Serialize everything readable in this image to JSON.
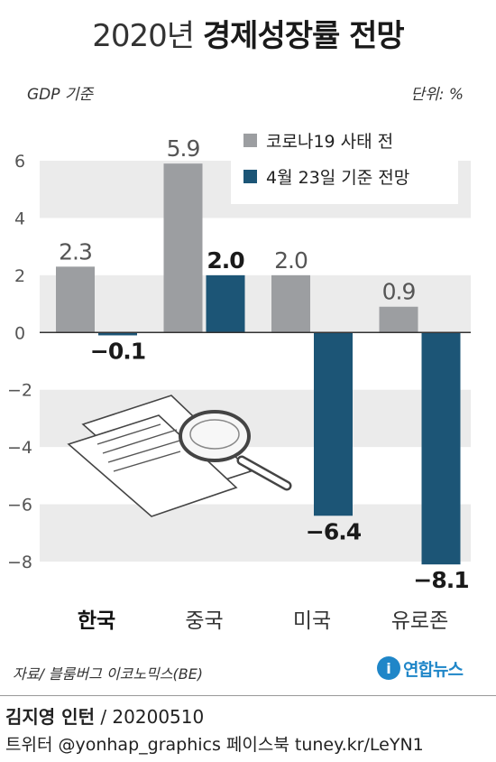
{
  "header": {
    "title_light": "2020년",
    "title_bold": "경제성장률 전망",
    "basis": "GDP 기준",
    "unit": "단위: %"
  },
  "chart_data": {
    "type": "bar",
    "categories": [
      "한국",
      "중국",
      "미국",
      "유로존"
    ],
    "series": [
      {
        "name": "코로나19 사태 전",
        "values": [
          2.3,
          5.9,
          2.0,
          0.9
        ],
        "labels": [
          "2.3",
          "5.9",
          "2.0",
          "0.9"
        ],
        "color": "#9c9ea1"
      },
      {
        "name": "4월 23일 기준 전망",
        "values": [
          -0.1,
          2.0,
          -6.4,
          -8.1
        ],
        "labels": [
          "−0.1",
          "2.0",
          "−6.4",
          "−8.1"
        ],
        "color": "#1c5576"
      }
    ],
    "ylim": [
      -8,
      6
    ],
    "yticks": [
      6,
      4,
      2,
      0,
      -2,
      -4,
      -6,
      -8
    ],
    "ytick_labels": [
      "6",
      "4",
      "2",
      "0",
      "−2",
      "−4",
      "−6",
      "−8"
    ],
    "grid": "alternating horizontal bands",
    "legend": "top-right",
    "highlighted_category": "한국"
  },
  "footer": {
    "source": "자료/ 블룸버그 이코노믹스(BE)",
    "logo_mark": "i",
    "logo_text": "연합뉴스",
    "author": "김지영 인턴",
    "date": " / 20200510",
    "social": "트위터 @yonhap_graphics  페이스북 tuney.kr/LeYN1"
  },
  "colors": {
    "band": "#ebebeb",
    "baseline": "#333333",
    "accent": "#1f86c8"
  }
}
